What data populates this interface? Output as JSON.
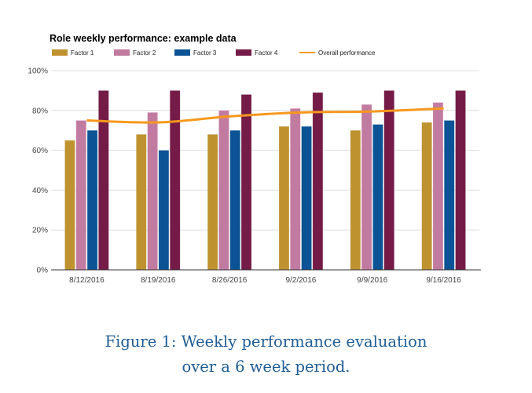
{
  "chart_data": {
    "type": "bar",
    "title": "Role weekly performance: example data",
    "xlabel": "",
    "ylabel": "",
    "categories": [
      "8/12/2016",
      "8/19/2016",
      "8/26/2016",
      "9/2/2016",
      "9/9/2016",
      "9/16/2016"
    ],
    "series": [
      {
        "name": "Factor 1",
        "type": "bar",
        "color": "#bf9230",
        "values": [
          65,
          68,
          68,
          72,
          70,
          74
        ]
      },
      {
        "name": "Factor 2",
        "type": "bar",
        "color": "#c27ba0",
        "values": [
          75,
          79,
          80,
          81,
          83,
          84
        ]
      },
      {
        "name": "Factor 3",
        "type": "bar",
        "color": "#0b5394",
        "values": [
          70,
          60,
          70,
          72,
          73,
          75
        ]
      },
      {
        "name": "Factor 4",
        "type": "bar",
        "color": "#741b47",
        "values": [
          90,
          90,
          88,
          89,
          90,
          90
        ]
      },
      {
        "name": "Overall performance",
        "type": "line",
        "color": "#f7981d",
        "values": [
          75,
          74,
          77,
          79,
          79.5,
          81
        ]
      }
    ],
    "ylim": [
      0,
      100
    ],
    "yticks": [
      "0%",
      "20%",
      "40%",
      "60%",
      "80%",
      "100%"
    ],
    "grid": true,
    "legend_position": "top-left"
  },
  "caption": {
    "line1": "Figure 1: Weekly performance evaluation",
    "line2": "over a 6 week period."
  }
}
